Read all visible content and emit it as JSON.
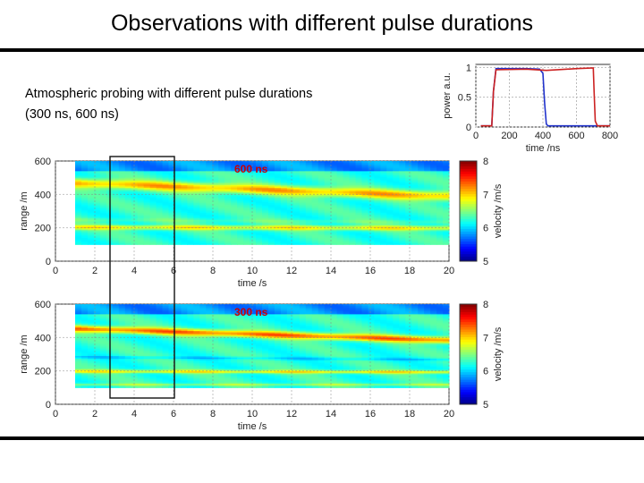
{
  "title": "Observations with different pulse durations",
  "description": {
    "line1": "Atmospheric probing with different pulse durations",
    "line2": "(300 ns, 600 ns)"
  },
  "chart_data": [
    {
      "type": "line",
      "name": "pulse-power",
      "xlabel": "time /ns",
      "ylabel": "power a.u.",
      "xlim": [
        0,
        800
      ],
      "ylim": [
        0,
        1.05
      ],
      "xticks": [
        "0",
        "200",
        "400",
        "600",
        "800"
      ],
      "yticks": [
        "0",
        "0.5",
        "1"
      ],
      "grid": true,
      "series": [
        {
          "color": "#2233cc",
          "x": [
            30,
            95,
            105,
            120,
            300,
            380,
            400,
            410,
            420,
            430,
            800
          ],
          "y": [
            0.02,
            0.02,
            0.6,
            0.98,
            0.98,
            0.97,
            0.9,
            0.4,
            0.05,
            0.02,
            0.02
          ]
        },
        {
          "color": "#cc2222",
          "x": [
            30,
            95,
            105,
            120,
            300,
            420,
            600,
            700,
            705,
            712,
            725,
            800
          ],
          "y": [
            0.02,
            0.02,
            0.6,
            0.96,
            0.97,
            0.95,
            0.98,
            0.99,
            0.6,
            0.1,
            0.02,
            0.02
          ]
        }
      ]
    },
    {
      "type": "heatmap",
      "name": "600-ns-panel",
      "label": "600 ns",
      "xlabel": "time /s",
      "ylabel": "range /m",
      "xlim": [
        0,
        20
      ],
      "ylim": [
        0,
        600
      ],
      "xticks": [
        "0",
        "2",
        "4",
        "6",
        "8",
        "10",
        "12",
        "14",
        "16",
        "18",
        "20"
      ],
      "yticks": [
        "0",
        "200",
        "400",
        "600"
      ],
      "data_x": [
        1,
        20
      ],
      "data_y": [
        100,
        600
      ],
      "colorbar": {
        "label": "velocity /m/s",
        "min": 5,
        "max": 8,
        "ticks": [
          "5",
          "6",
          "7",
          "8"
        ]
      },
      "highlight_x": [
        3,
        6
      ],
      "bands": [
        {
          "range_start": 470,
          "range_end": 390,
          "velocity": 7.1,
          "width": 28
        },
        {
          "range_start": 205,
          "range_end": 200,
          "velocity": 6.9,
          "width": 14
        },
        {
          "range_start": 250,
          "range_end": 235,
          "velocity": 6.4,
          "width": 12
        }
      ]
    },
    {
      "type": "heatmap",
      "name": "300-ns-panel",
      "label": "300 ns",
      "xlabel": "time /s",
      "ylabel": "range /m",
      "xlim": [
        0,
        20
      ],
      "ylim": [
        0,
        600
      ],
      "xticks": [
        "0",
        "2",
        "4",
        "6",
        "8",
        "10",
        "12",
        "14",
        "16",
        "18",
        "20"
      ],
      "yticks": [
        "0",
        "200",
        "400",
        "600"
      ],
      "data_x": [
        1,
        20
      ],
      "data_y": [
        100,
        600
      ],
      "colorbar": {
        "label": "velocity /m/s",
        "min": 5,
        "max": 8,
        "ticks": [
          "5",
          "6",
          "7",
          "8"
        ]
      },
      "highlight_x": [
        3,
        6
      ],
      "bands": [
        {
          "range_start": 455,
          "range_end": 385,
          "velocity": 7.3,
          "width": 20
        },
        {
          "range_start": 200,
          "range_end": 195,
          "velocity": 6.9,
          "width": 10
        },
        {
          "range_start": 285,
          "range_end": 270,
          "velocity": 6.0,
          "width": 8
        },
        {
          "range_start": 120,
          "range_end": 120,
          "velocity": 6.6,
          "width": 8
        }
      ]
    }
  ]
}
